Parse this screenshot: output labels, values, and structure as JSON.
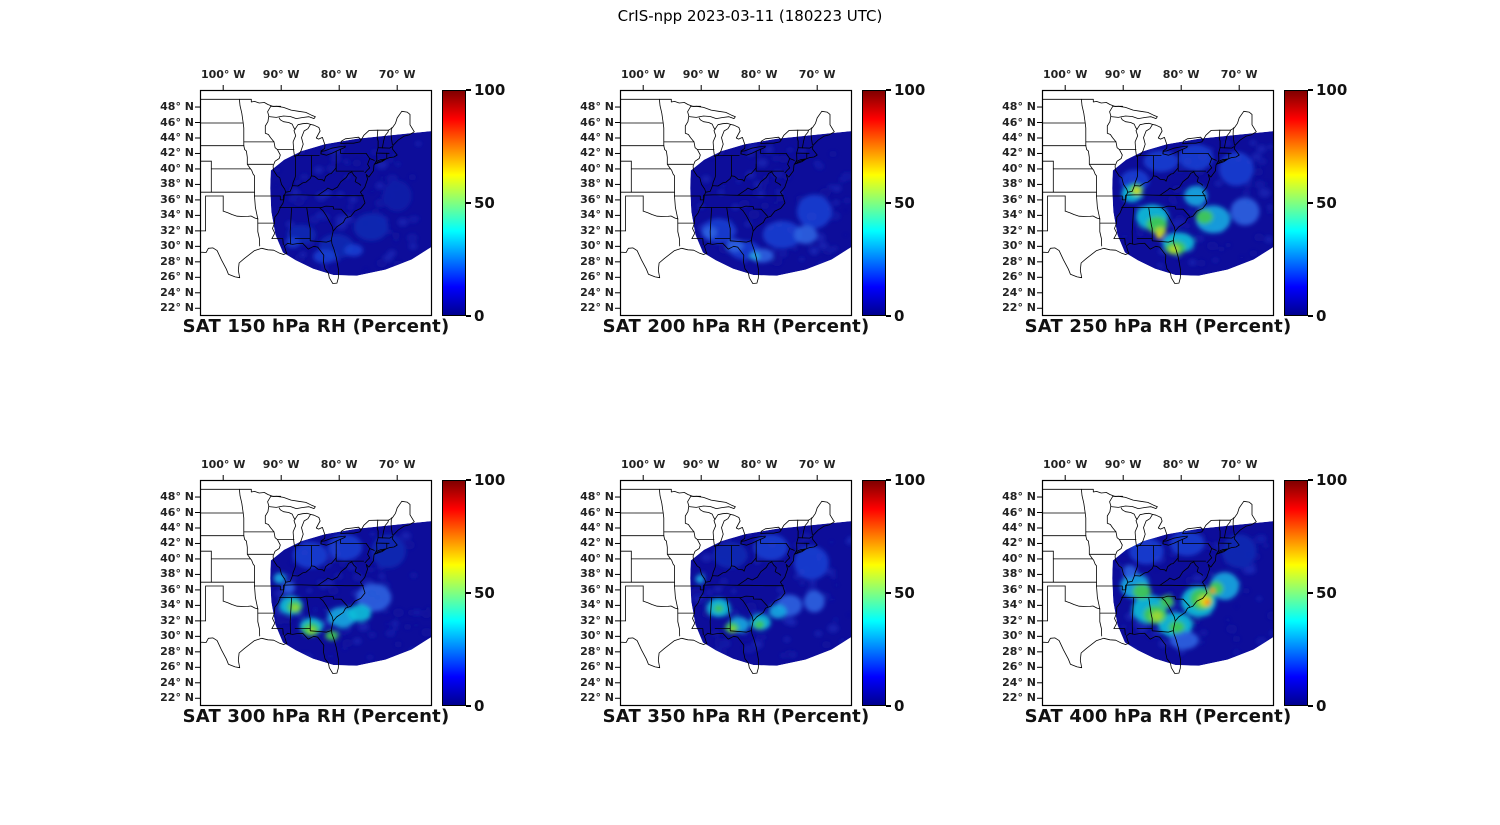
{
  "figure_title": "CrIS-npp 2023-03-11 (180223 UTC)",
  "chart_data": {
    "type": "heatmap",
    "satellite": "CrIS-npp",
    "date": "2023-03-11",
    "time_utc": "180223 UTC",
    "variable": "RH (Percent)",
    "levels_hPa": [
      150,
      200,
      250,
      300,
      350,
      400
    ],
    "grid": {
      "rows": 2,
      "cols": 3
    },
    "colorbar": {
      "min": 0,
      "max": 100,
      "ticks": [
        100,
        50,
        0
      ],
      "colormap": "jet"
    },
    "axes": {
      "lon_ticks": [
        {
          "label": "100° W",
          "lon": -100
        },
        {
          "label": "90° W",
          "lon": -90
        },
        {
          "label": "80° W",
          "lon": -80
        },
        {
          "label": "70° W",
          "lon": -70
        }
      ],
      "lat_ticks": [
        {
          "label": "48° N",
          "lat": 48
        },
        {
          "label": "46° N",
          "lat": 46
        },
        {
          "label": "44° N",
          "lat": 44
        },
        {
          "label": "42° N",
          "lat": 42
        },
        {
          "label": "40° N",
          "lat": 40
        },
        {
          "label": "38° N",
          "lat": 38
        },
        {
          "label": "36° N",
          "lat": 36
        },
        {
          "label": "34° N",
          "lat": 34
        },
        {
          "label": "32° N",
          "lat": 32
        },
        {
          "label": "30° N",
          "lat": 30
        },
        {
          "label": "28° N",
          "lat": 28
        },
        {
          "label": "26° N",
          "lat": 26
        },
        {
          "label": "24° N",
          "lat": 24
        },
        {
          "label": "22° N",
          "lat": 22
        }
      ]
    },
    "base_color": "#0d0d9a",
    "swath_polygon": [
      [
        -91.8,
        39.8
      ],
      [
        -89.5,
        41.2
      ],
      [
        -86.5,
        42.3
      ],
      [
        -82.5,
        43.2
      ],
      [
        -77.0,
        43.9
      ],
      [
        -70.5,
        44.4
      ],
      [
        -63.9,
        44.9
      ],
      [
        -63.9,
        30.0
      ],
      [
        -67.5,
        28.3
      ],
      [
        -72.0,
        27.0
      ],
      [
        -77.0,
        26.2
      ],
      [
        -81.0,
        26.3
      ],
      [
        -84.5,
        27.1
      ],
      [
        -87.5,
        28.2
      ],
      [
        -89.7,
        29.2
      ],
      [
        -91.0,
        31.5
      ],
      [
        -91.7,
        34.5
      ],
      [
        -91.9,
        37.5
      ]
    ],
    "panels": [
      {
        "title": "SAT 150 hPa RH (Percent)",
        "level_hPa": 150,
        "patches": [
          [
            -86.5,
            31.5,
            2.5,
            1.3,
            "#1228b2"
          ],
          [
            -80.5,
            30.0,
            3.0,
            1.6,
            "#1228b2"
          ],
          [
            -74.5,
            32.5,
            3.0,
            1.8,
            "#1228b2"
          ],
          [
            -70.0,
            36.5,
            2.5,
            2.0,
            "#101ca8"
          ],
          [
            -82.5,
            28.7,
            2.0,
            0.9,
            "#1b3fd0"
          ],
          [
            -77.5,
            29.5,
            1.6,
            0.8,
            "#1b3fd0"
          ],
          [
            -88.0,
            30.5,
            1.2,
            0.7,
            "#1b3fd0"
          ]
        ]
      },
      {
        "title": "SAT 200 hPa RH (Percent)",
        "level_hPa": 200,
        "patches": [
          [
            -87.0,
            32.0,
            3.0,
            1.6,
            "#1b3fd0"
          ],
          [
            -82.5,
            29.5,
            2.6,
            1.2,
            "#1b3fd0"
          ],
          [
            -76.0,
            31.5,
            3.4,
            1.8,
            "#1b3fd0"
          ],
          [
            -70.5,
            34.5,
            3.0,
            2.2,
            "#1b3fd0"
          ],
          [
            -79.5,
            28.8,
            2.0,
            0.9,
            "#2b63e0"
          ],
          [
            -84.2,
            30.1,
            1.5,
            0.8,
            "#2b63e0"
          ],
          [
            -72.0,
            31.5,
            2.0,
            1.2,
            "#2b63e0"
          ],
          [
            -80.7,
            28.7,
            0.9,
            0.5,
            "#27a7e0"
          ],
          [
            -88.5,
            31.8,
            1.2,
            0.8,
            "#2b63e0"
          ]
        ]
      },
      {
        "title": "SAT 250 hPa RH (Percent)",
        "level_hPa": 250,
        "patches": [
          [
            -88.0,
            38.5,
            2.5,
            1.4,
            "#1b3fd0"
          ],
          [
            -83.5,
            41.0,
            3.0,
            1.4,
            "#1b3fd0"
          ],
          [
            -77.5,
            41.5,
            3.0,
            1.7,
            "#1b3fd0"
          ],
          [
            -70.5,
            40.0,
            3.0,
            2.2,
            "#1b3fd0"
          ],
          [
            -88.5,
            36.8,
            1.8,
            1.1,
            "#10c0d8"
          ],
          [
            -85.0,
            33.8,
            2.8,
            1.6,
            "#10c0d8"
          ],
          [
            -80.5,
            30.5,
            2.8,
            1.3,
            "#10c0d8"
          ],
          [
            -74.5,
            33.5,
            3.0,
            1.8,
            "#18a8e0"
          ],
          [
            -69.0,
            34.5,
            2.5,
            1.8,
            "#2b63e0"
          ],
          [
            -77.5,
            36.5,
            2.0,
            1.3,
            "#18a8e0"
          ],
          [
            -87.8,
            37.3,
            1.2,
            0.8,
            "#40c850"
          ],
          [
            -84.2,
            32.8,
            1.8,
            1.1,
            "#40c850"
          ],
          [
            -81.0,
            29.8,
            1.8,
            0.9,
            "#40c850"
          ],
          [
            -76.0,
            33.8,
            1.5,
            0.9,
            "#40c850"
          ],
          [
            -87.6,
            37.1,
            0.7,
            0.45,
            "#b8d828"
          ],
          [
            -83.6,
            31.9,
            1.0,
            0.6,
            "#b8d828"
          ],
          [
            -81.2,
            29.6,
            0.9,
            0.5,
            "#b8d828"
          ],
          [
            -83.8,
            31.3,
            0.55,
            0.35,
            "#f0e020"
          ],
          [
            -87.8,
            37.3,
            0.4,
            0.28,
            "#f0e020"
          ]
        ]
      },
      {
        "title": "SAT 300 hPa RH (Percent)",
        "level_hPa": 300,
        "patches": [
          [
            -85.0,
            40.5,
            3.0,
            1.7,
            "#1b3fd0"
          ],
          [
            -79.0,
            41.5,
            3.0,
            1.7,
            "#1b3fd0"
          ],
          [
            -71.5,
            41.0,
            3.0,
            2.2,
            "#1228b2"
          ],
          [
            -90.3,
            37.5,
            1.0,
            0.7,
            "#18a8e0"
          ],
          [
            -88.3,
            34.0,
            2.0,
            1.2,
            "#10c0d8"
          ],
          [
            -84.8,
            31.3,
            2.0,
            1.1,
            "#10c0d8"
          ],
          [
            -79.5,
            32.5,
            2.5,
            1.3,
            "#18a8e0"
          ],
          [
            -74.0,
            35.0,
            3.0,
            1.8,
            "#2b63e0"
          ],
          [
            -76.5,
            33.0,
            2.0,
            1.1,
            "#10c0d8"
          ],
          [
            -88.7,
            36.3,
            1.1,
            0.8,
            "#2b63e0"
          ],
          [
            -87.7,
            33.8,
            1.3,
            0.8,
            "#40c850"
          ],
          [
            -84.9,
            30.9,
            1.5,
            0.85,
            "#40c850"
          ],
          [
            -81.3,
            30.1,
            1.1,
            0.65,
            "#40c850"
          ],
          [
            -84.8,
            30.8,
            0.6,
            0.4,
            "#a0d830"
          ],
          [
            -87.6,
            33.7,
            0.6,
            0.4,
            "#a0d830"
          ]
        ]
      },
      {
        "title": "SAT 350 hPa RH (Percent)",
        "level_hPa": 350,
        "patches": [
          [
            -85.0,
            40.5,
            3.0,
            1.7,
            "#1228b2"
          ],
          [
            -78.0,
            41.5,
            3.0,
            1.7,
            "#1b3fd0"
          ],
          [
            -71.0,
            39.5,
            3.0,
            2.2,
            "#1b3fd0"
          ],
          [
            -90.2,
            37.4,
            0.8,
            0.55,
            "#18a8e0"
          ],
          [
            -87.0,
            33.7,
            2.0,
            1.2,
            "#10c0d8"
          ],
          [
            -83.5,
            31.5,
            1.8,
            1.0,
            "#18a8e0"
          ],
          [
            -79.8,
            31.8,
            1.8,
            1.0,
            "#10c0d8"
          ],
          [
            -74.8,
            34.0,
            2.2,
            1.4,
            "#2b63e0"
          ],
          [
            -76.8,
            33.2,
            1.5,
            0.9,
            "#18a8e0"
          ],
          [
            -70.5,
            34.5,
            1.8,
            1.4,
            "#2b63e0"
          ],
          [
            -84.7,
            31.1,
            1.2,
            0.7,
            "#40c850"
          ],
          [
            -80.0,
            31.5,
            0.9,
            0.55,
            "#40c850"
          ],
          [
            -87.0,
            33.6,
            0.8,
            0.5,
            "#40c850"
          ],
          [
            -84.6,
            30.9,
            0.5,
            0.32,
            "#a0d830"
          ]
        ]
      },
      {
        "title": "SAT 400 hPa RH (Percent)",
        "level_hPa": 400,
        "patches": [
          [
            -86.0,
            41.0,
            3.0,
            1.7,
            "#1b3fd0"
          ],
          [
            -79.0,
            42.0,
            3.0,
            1.6,
            "#1b3fd0"
          ],
          [
            -70.0,
            41.0,
            3.0,
            2.2,
            "#1228b2"
          ],
          [
            -88.0,
            36.5,
            2.5,
            1.6,
            "#18a8e0"
          ],
          [
            -85.5,
            33.5,
            3.0,
            1.8,
            "#10c0d8"
          ],
          [
            -81.0,
            31.5,
            3.0,
            1.6,
            "#10c0d8"
          ],
          [
            -77.0,
            34.5,
            3.0,
            2.0,
            "#10c0d8"
          ],
          [
            -72.5,
            36.5,
            2.5,
            1.8,
            "#18a8e0"
          ],
          [
            -79.5,
            29.5,
            2.5,
            1.2,
            "#2b63e0"
          ],
          [
            -88.8,
            38.3,
            1.2,
            0.9,
            "#2b63e0"
          ],
          [
            -86.8,
            35.8,
            1.6,
            1.0,
            "#40c850"
          ],
          [
            -84.5,
            32.8,
            2.0,
            1.2,
            "#40c850"
          ],
          [
            -76.5,
            34.8,
            2.0,
            1.4,
            "#40c850"
          ],
          [
            -80.8,
            31.2,
            1.4,
            0.8,
            "#40c850"
          ],
          [
            -74.0,
            36.2,
            1.3,
            0.9,
            "#40c850"
          ],
          [
            -82.5,
            34.5,
            1.2,
            0.8,
            "#40c850"
          ],
          [
            -76.0,
            34.6,
            1.2,
            0.85,
            "#a0d830"
          ],
          [
            -84.2,
            32.6,
            1.0,
            0.65,
            "#a0d830"
          ],
          [
            -75.7,
            34.5,
            0.8,
            0.55,
            "#f0e020"
          ],
          [
            -75.5,
            34.4,
            0.55,
            0.38,
            "#ff9000"
          ],
          [
            -74.6,
            35.9,
            0.5,
            0.33,
            "#ff9000"
          ],
          [
            -75.4,
            34.45,
            0.3,
            0.2,
            "#ff4500"
          ]
        ]
      }
    ]
  }
}
